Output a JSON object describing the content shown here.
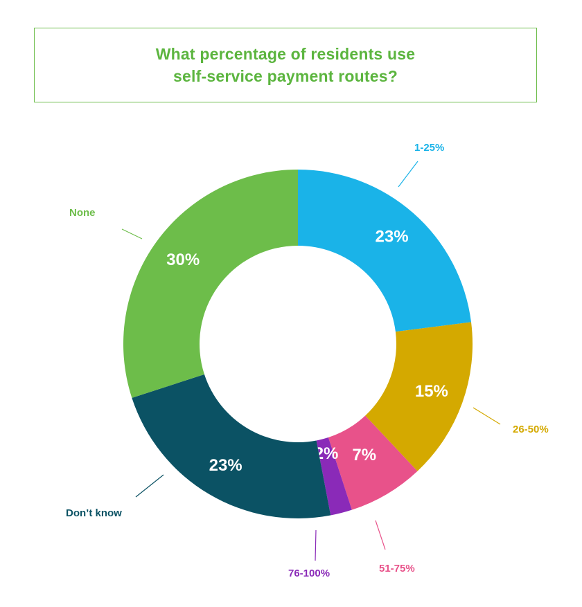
{
  "chart_data": {
    "type": "pie",
    "title_lines": [
      "What percentage of residents use",
      "self-service payment routes?"
    ],
    "categories": [
      "1-25%",
      "26-50%",
      "51-75%",
      "76-100%",
      "Don’t know",
      "None"
    ],
    "values": [
      23,
      15,
      7,
      2,
      23,
      30
    ],
    "value_labels": [
      "23%",
      "15%",
      "7%",
      "2%",
      "23%",
      "30%"
    ],
    "colors": [
      "#1ab3e8",
      "#d4a900",
      "#e8528a",
      "#8a2ab8",
      "#0b5264",
      "#6dbd4a"
    ],
    "donut": true,
    "legend": "callout labels"
  }
}
